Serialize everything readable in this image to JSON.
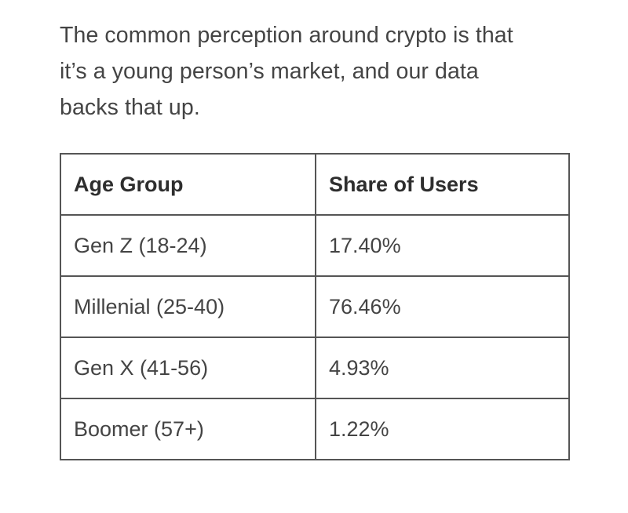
{
  "intro": {
    "lines": [
      "The common perception around crypto is that",
      "it’s a young person’s market, and our data",
      "backs that up."
    ]
  },
  "table": {
    "headers": [
      "Age Group",
      "Share of Users"
    ],
    "rows": [
      [
        "Gen Z (18-24)",
        "17.40%"
      ],
      [
        "Millenial (25-40)",
        "76.46%"
      ],
      [
        "Gen X (41-56)",
        "4.93%"
      ],
      [
        "Boomer (57+)",
        "1.22%"
      ]
    ]
  }
}
